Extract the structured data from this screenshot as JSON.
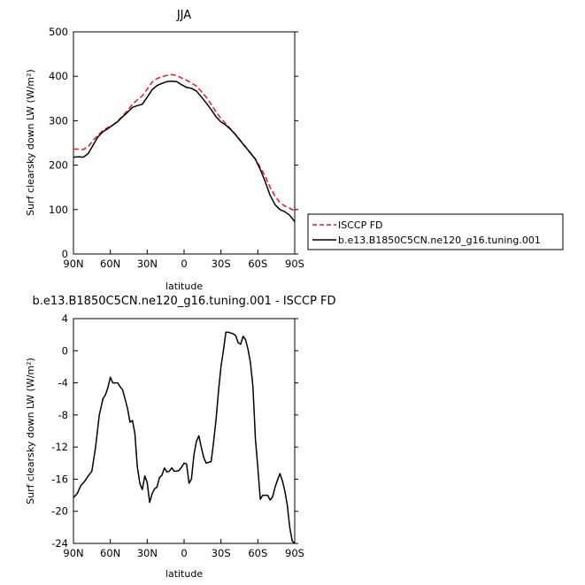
{
  "chart_data": [
    {
      "type": "line",
      "title": "JJA",
      "xlabel": "latitude",
      "ylabel": "Surf clearsky down LW (W/m²)",
      "xlim": [
        90,
        -90
      ],
      "ylim": [
        0,
        500
      ],
      "x_ticks": [
        90,
        60,
        30,
        0,
        -30,
        -60,
        -90
      ],
      "x_tick_labels": [
        "90N",
        "60N",
        "30N",
        "0",
        "30S",
        "60S",
        "90S"
      ],
      "y_ticks": [
        0,
        100,
        200,
        300,
        400,
        500
      ],
      "y_tick_labels": [
        "0",
        "100",
        "200",
        "300",
        "400",
        "500"
      ],
      "legend_position": "outside-right",
      "series": [
        {
          "name": "ISCCP FD",
          "color": "#e41a1c",
          "dash": "dashed",
          "x": [
            90,
            86,
            82,
            78,
            74,
            70,
            66,
            62,
            58,
            54,
            50,
            46,
            42,
            38,
            34,
            30,
            26,
            22,
            18,
            14,
            10,
            6,
            2,
            -2,
            -6,
            -10,
            -14,
            -18,
            -22,
            -26,
            -30,
            -34,
            -38,
            -42,
            -46,
            -50,
            -54,
            -58,
            -62,
            -66,
            -70,
            -74,
            -78,
            -82,
            -86,
            -90
          ],
          "y": [
            236,
            236,
            235,
            242,
            255,
            268,
            278,
            285,
            290,
            299,
            311,
            323,
            337,
            347,
            356,
            371,
            387,
            395,
            399,
            402,
            404,
            402,
            396,
            391,
            385,
            378,
            366,
            353,
            337,
            320,
            305,
            293,
            281,
            269,
            255,
            241,
            228,
            214,
            195,
            175,
            150,
            130,
            116,
            108,
            103,
            97
          ]
        },
        {
          "name": "b.e13.B1850C5CN.ne120_g16.tuning.001",
          "color": "#000000",
          "dash": "solid",
          "x": [
            90,
            86,
            82,
            78,
            74,
            70,
            66,
            62,
            58,
            54,
            50,
            46,
            42,
            38,
            34,
            30,
            26,
            22,
            18,
            14,
            10,
            6,
            2,
            -2,
            -6,
            -10,
            -14,
            -18,
            -22,
            -26,
            -30,
            -34,
            -38,
            -42,
            -46,
            -50,
            -54,
            -58,
            -62,
            -66,
            -70,
            -74,
            -78,
            -82,
            -86,
            -90
          ],
          "y": [
            218,
            219,
            218,
            226,
            245,
            264,
            275,
            282,
            290,
            298,
            309,
            319,
            330,
            334,
            337,
            353,
            370,
            379,
            384,
            388,
            389,
            388,
            381,
            375,
            373,
            367,
            354,
            340,
            325,
            309,
            297,
            290,
            280,
            268,
            254,
            241,
            227,
            213,
            190,
            163,
            132,
            111,
            100,
            95,
            87,
            73
          ]
        }
      ]
    },
    {
      "type": "line",
      "title": "b.e13.B1850C5CN.ne120_g16.tuning.001 - ISCCP FD",
      "xlabel": "latitude",
      "ylabel": "Surf clearsky down LW (W/m²)",
      "xlim": [
        90,
        -90
      ],
      "ylim": [
        -24,
        4
      ],
      "x_ticks": [
        90,
        60,
        30,
        0,
        -30,
        -60,
        -90
      ],
      "x_tick_labels": [
        "90N",
        "60N",
        "30N",
        "0",
        "30S",
        "60S",
        "90S"
      ],
      "y_ticks": [
        4,
        0,
        -4,
        -8,
        -12,
        -16,
        -20,
        -24
      ],
      "y_tick_labels": [
        "4",
        "0",
        "-4",
        "-8",
        "-12",
        "-16",
        "-20",
        "-24"
      ],
      "series": [
        {
          "color": "#000000",
          "dash": "solid",
          "x": [
            90,
            87,
            84,
            81,
            78,
            75,
            72,
            69,
            66,
            64,
            62,
            60,
            58,
            56,
            54,
            52,
            50,
            48,
            46,
            44,
            42,
            40,
            38,
            36,
            34,
            32,
            30,
            28,
            26,
            24,
            22,
            20,
            18,
            16,
            14,
            12,
            10,
            8,
            6,
            4,
            2,
            0,
            -2,
            -4,
            -6,
            -8,
            -10,
            -12,
            -14,
            -16,
            -18,
            -20,
            -22,
            -24,
            -26,
            -28,
            -30,
            -32,
            -34,
            -36,
            -38,
            -40,
            -42,
            -44,
            -46,
            -48,
            -50,
            -52,
            -54,
            -56,
            -58,
            -60,
            -62,
            -64,
            -66,
            -68,
            -70,
            -72,
            -74,
            -76,
            -78,
            -80,
            -82,
            -84,
            -86,
            -88,
            -90
          ],
          "y": [
            -18.3,
            -17.8,
            -16.8,
            -16.3,
            -15.6,
            -15.0,
            -12.0,
            -8.0,
            -6.0,
            -5.5,
            -4.6,
            -3.3,
            -4.0,
            -4.0,
            -4.0,
            -4.5,
            -4.9,
            -6.0,
            -7.2,
            -8.9,
            -8.7,
            -10.3,
            -14.5,
            -16.5,
            -17.3,
            -15.6,
            -16.4,
            -18.9,
            -17.8,
            -17.2,
            -17.0,
            -15.8,
            -15.5,
            -14.6,
            -15.1,
            -15.0,
            -14.6,
            -15.0,
            -15.0,
            -14.9,
            -14.5,
            -14.0,
            -14.1,
            -16.5,
            -16.0,
            -13.0,
            -11.3,
            -10.6,
            -12.0,
            -13.3,
            -14.0,
            -13.9,
            -13.8,
            -11.4,
            -8.6,
            -5.0,
            -2.0,
            0.0,
            2.3,
            2.3,
            2.2,
            2.1,
            1.9,
            1.0,
            0.8,
            1.8,
            1.4,
            0.2,
            -1.5,
            -4.5,
            -11.0,
            -14.5,
            -18.5,
            -18.0,
            -18.0,
            -18.0,
            -18.6,
            -18.2,
            -17.0,
            -16.1,
            -15.3,
            -16.2,
            -17.5,
            -19.3,
            -22.0,
            -23.7,
            -24.0
          ]
        }
      ]
    }
  ]
}
